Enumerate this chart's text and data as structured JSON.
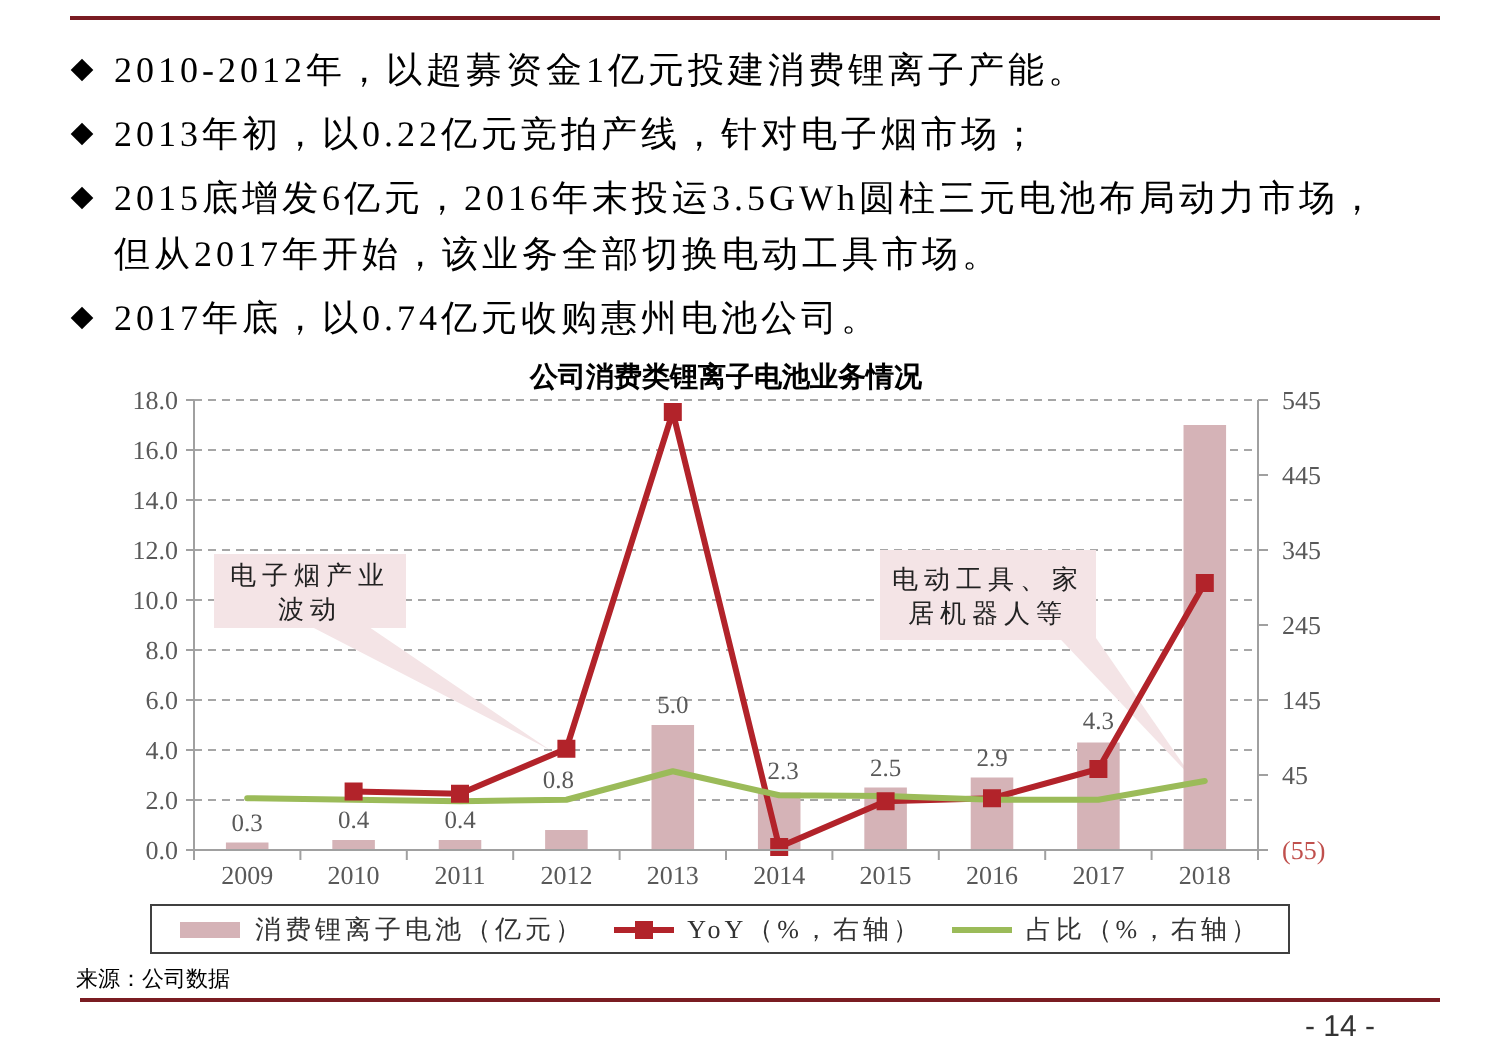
{
  "chart_data": {
    "type": "bar",
    "title": "公司消费类锂离子电池业务情况",
    "categories": [
      "2009",
      "2010",
      "2011",
      "2012",
      "2013",
      "2014",
      "2015",
      "2016",
      "2017",
      "2018"
    ],
    "series": [
      {
        "name": "消费锂离子电池（亿元）",
        "color": "#d5b3b7",
        "values": [
          0.3,
          0.4,
          0.4,
          0.8,
          5.0,
          2.3,
          2.5,
          2.9,
          4.3,
          17.0
        ],
        "value_labels": [
          "0.3",
          "0.4",
          "0.4",
          "0.8",
          "5.0",
          "2.3",
          "2.5",
          "2.9",
          "4.3",
          null
        ]
      },
      {
        "name": "YoY（%，右轴）",
        "type": "line",
        "axis": "y2",
        "color": "#b2232a",
        "marker": "square",
        "values": [
          null,
          23,
          20,
          80,
          529,
          -51,
          10,
          14,
          53,
          301
        ]
      },
      {
        "name": "占比（%，右轴）",
        "type": "line",
        "axis": "y2",
        "color": "#9bbb59",
        "values": [
          14,
          12,
          10,
          12,
          50,
          18,
          17,
          12,
          12,
          37
        ]
      }
    ],
    "ylim": [
      0,
      18
    ],
    "yticks": [
      {
        "value": 0,
        "label": "0.0"
      },
      {
        "value": 2,
        "label": "2.0"
      },
      {
        "value": 4,
        "label": "4.0"
      },
      {
        "value": 6,
        "label": "6.0"
      },
      {
        "value": 8,
        "label": "8.0"
      },
      {
        "value": 10,
        "label": "10.0"
      },
      {
        "value": 12,
        "label": "12.0"
      },
      {
        "value": 14,
        "label": "14.0"
      },
      {
        "value": 16,
        "label": "16.0"
      },
      {
        "value": 18,
        "label": "18.0"
      }
    ],
    "y2lim": [
      -55,
      545
    ],
    "y2ticks": [
      {
        "value": -55,
        "label": "(55)"
      },
      45,
      145,
      245,
      345,
      445,
      545
    ],
    "grid": "y",
    "legend": "bottom",
    "annotations": [
      "2010-2012年，以超募资金1亿元投建消费锂离子产能。",
      "2013年初，以0.22亿元竞拍产线，针对电子烟市场；",
      "2015底增发6亿元，2016年末投运3.5GWh圆柱三元电池布局动力市场，但从2017年开始，该业务全部切换电动工具市场。",
      "2017年底，以0.74亿元收购惠州电池公司。",
      "电子烟产业波动",
      "电动工具、家居机器人等",
      "来源：公司数据",
      "- 14 -"
    ]
  }
}
